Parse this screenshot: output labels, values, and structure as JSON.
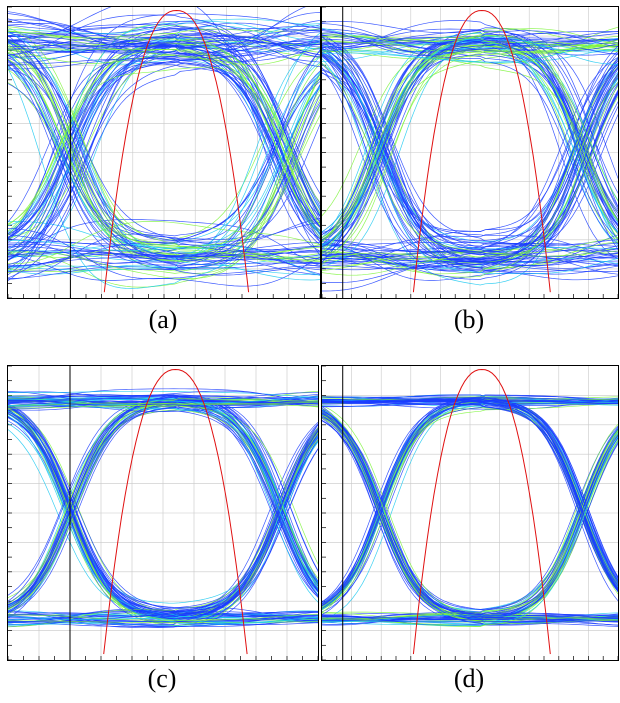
{
  "figure": {
    "panels": [
      {
        "id": "a",
        "caption": "(a)",
        "noise": 1.0,
        "jitter": 1.0,
        "green_density": 0.55
      },
      {
        "id": "b",
        "caption": "(b)",
        "noise": 0.75,
        "jitter": 0.75,
        "green_density": 0.45
      },
      {
        "id": "c",
        "caption": "(c)",
        "noise": 0.35,
        "jitter": 0.45,
        "green_density": 0.6
      },
      {
        "id": "d",
        "caption": "(d)",
        "noise": 0.25,
        "jitter": 0.3,
        "green_density": 0.35
      }
    ]
  },
  "colors": {
    "trace_blue": "#1a3cff",
    "trace_cyan": "#19c8f0",
    "trace_green": "#7cf53a",
    "histogram_red": "#e01010",
    "grid": "#c8c8c8",
    "axis": "#000000"
  }
}
